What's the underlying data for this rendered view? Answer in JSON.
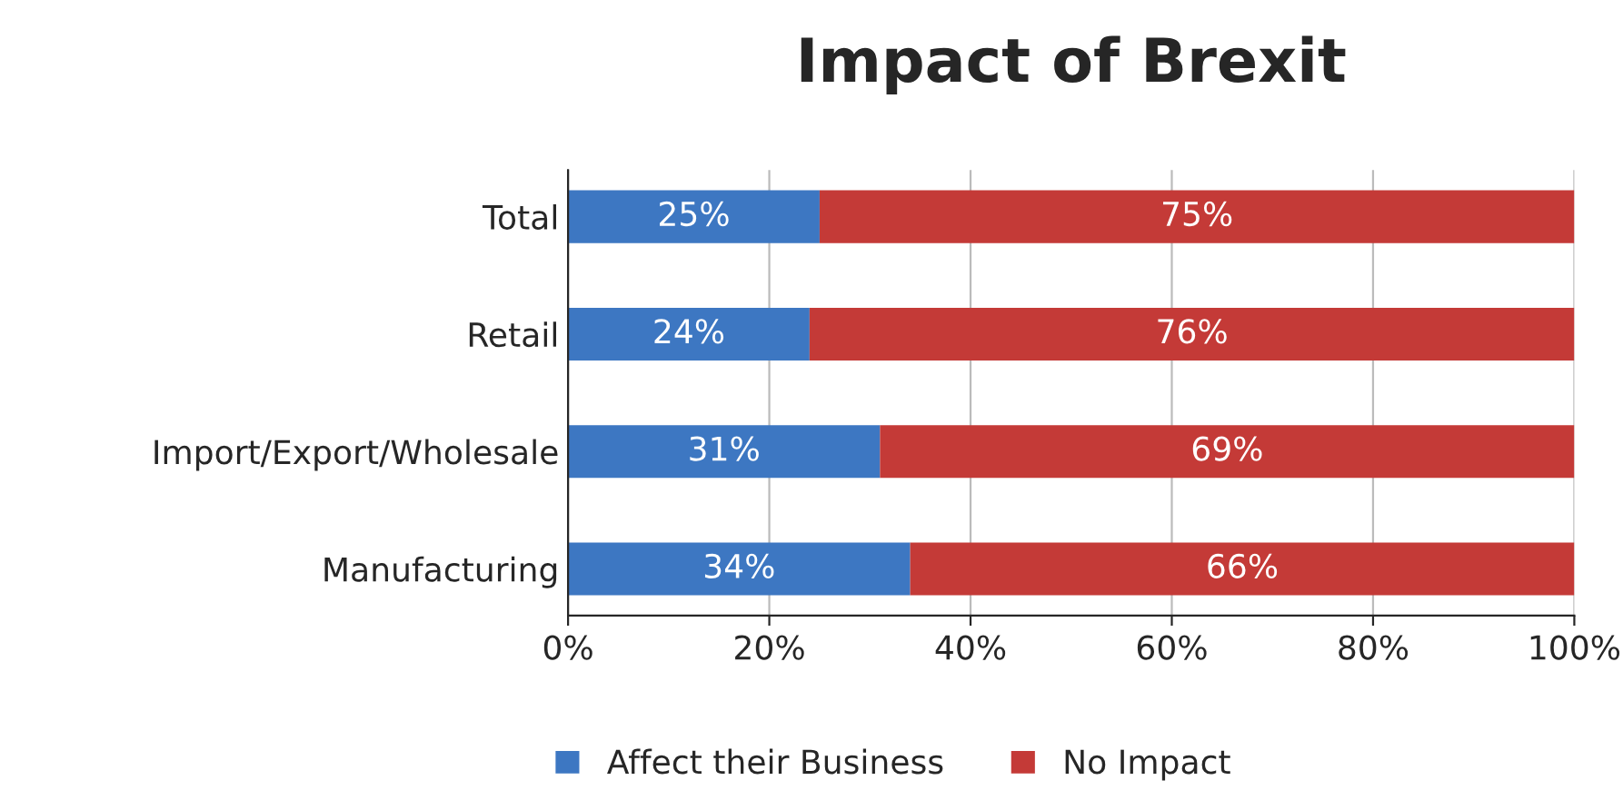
{
  "chart_data": {
    "type": "bar",
    "orientation": "horizontal",
    "stacked": true,
    "title": "Impact of Brexit",
    "categories": [
      "Total",
      "Retail",
      "Import/Export/Wholesale",
      "Manufacturing"
    ],
    "series": [
      {
        "name": "Affect their Business",
        "color": "#3d77c2",
        "values": [
          25,
          24,
          31,
          34
        ],
        "value_labels": [
          "25%",
          "24%",
          "31%",
          "34%"
        ]
      },
      {
        "name": "No Impact",
        "color": "#c43a37",
        "values": [
          75,
          76,
          69,
          66
        ],
        "value_labels": [
          "75%",
          "76%",
          "69%",
          "66%"
        ]
      }
    ],
    "xlim": [
      0,
      100
    ],
    "xticks": [
      {
        "value": 0,
        "label": "0%"
      },
      {
        "value": 20,
        "label": "20%"
      },
      {
        "value": 40,
        "label": "40%"
      },
      {
        "value": 60,
        "label": "60%"
      },
      {
        "value": 80,
        "label": "80%"
      },
      {
        "value": 100,
        "label": "100%"
      }
    ],
    "grid": "x",
    "legend": "bottom"
  }
}
